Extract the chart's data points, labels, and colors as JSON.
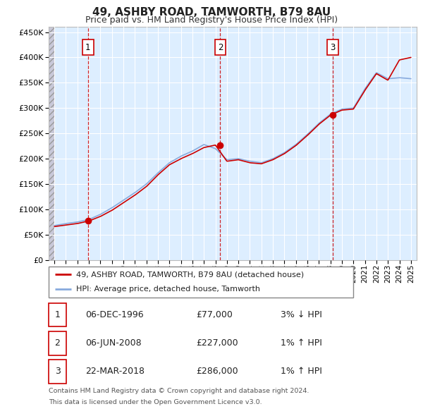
{
  "title": "49, ASHBY ROAD, TAMWORTH, B79 8AU",
  "subtitle": "Price paid vs. HM Land Registry's House Price Index (HPI)",
  "ytick_values": [
    0,
    50000,
    100000,
    150000,
    200000,
    250000,
    300000,
    350000,
    400000,
    450000
  ],
  "ylim": [
    0,
    460000
  ],
  "xlim_start": 1993.5,
  "xlim_end": 2025.5,
  "sales": [
    {
      "label": "1",
      "date": "06-DEC-1996",
      "price": 77000,
      "x": 1996.92
    },
    {
      "label": "2",
      "date": "06-JUN-2008",
      "price": 227000,
      "x": 2008.42
    },
    {
      "label": "3",
      "date": "22-MAR-2018",
      "price": 286000,
      "x": 2018.22
    }
  ],
  "legend_line1": "49, ASHBY ROAD, TAMWORTH, B79 8AU (detached house)",
  "legend_line2": "HPI: Average price, detached house, Tamworth",
  "footer_line1": "Contains HM Land Registry data © Crown copyright and database right 2024.",
  "footer_line2": "This data is licensed under the Open Government Licence v3.0.",
  "table_rows": [
    [
      "1",
      "06-DEC-1996",
      "£77,000",
      "3% ↓ HPI"
    ],
    [
      "2",
      "06-JUN-2008",
      "£227,000",
      "1% ↑ HPI"
    ],
    [
      "3",
      "22-MAR-2018",
      "£286,000",
      "1% ↑ HPI"
    ]
  ],
  "price_line_color": "#cc0000",
  "hpi_line_color": "#88aadd",
  "sale_marker_color": "#cc0000",
  "vline_color": "#cc0000",
  "box_color": "#cc0000",
  "background_plot": "#ddeeff",
  "grid_color": "#ffffff",
  "hpi_knots_x": [
    1994,
    1995,
    1996,
    1997,
    1998,
    1999,
    2000,
    2001,
    2002,
    2003,
    2004,
    2005,
    2006,
    2007,
    2008,
    2009,
    2010,
    2011,
    2012,
    2013,
    2014,
    2015,
    2016,
    2017,
    2018,
    2019,
    2020,
    2021,
    2022,
    2023,
    2024,
    2025
  ],
  "hpi_knots_y": [
    68000,
    72000,
    75000,
    80000,
    90000,
    103000,
    118000,
    133000,
    150000,
    172000,
    192000,
    205000,
    215000,
    228000,
    220000,
    198000,
    200000,
    195000,
    192000,
    200000,
    212000,
    228000,
    248000,
    270000,
    288000,
    298000,
    300000,
    338000,
    370000,
    358000,
    360000,
    358000
  ],
  "price_knots_x": [
    1994,
    1995,
    1996,
    1997,
    1998,
    1999,
    2000,
    2001,
    2002,
    2003,
    2004,
    2005,
    2006,
    2007,
    2008,
    2009,
    2010,
    2011,
    2012,
    2013,
    2014,
    2015,
    2016,
    2017,
    2018,
    2019,
    2020,
    2021,
    2022,
    2023,
    2024,
    2025
  ],
  "price_knots_y": [
    66000,
    69000,
    72000,
    77000,
    86000,
    98000,
    113000,
    128000,
    145000,
    168000,
    188000,
    200000,
    210000,
    222000,
    227000,
    195000,
    198000,
    192000,
    190000,
    198000,
    210000,
    226000,
    246000,
    268000,
    286000,
    296000,
    298000,
    335000,
    368000,
    355000,
    395000,
    400000
  ]
}
